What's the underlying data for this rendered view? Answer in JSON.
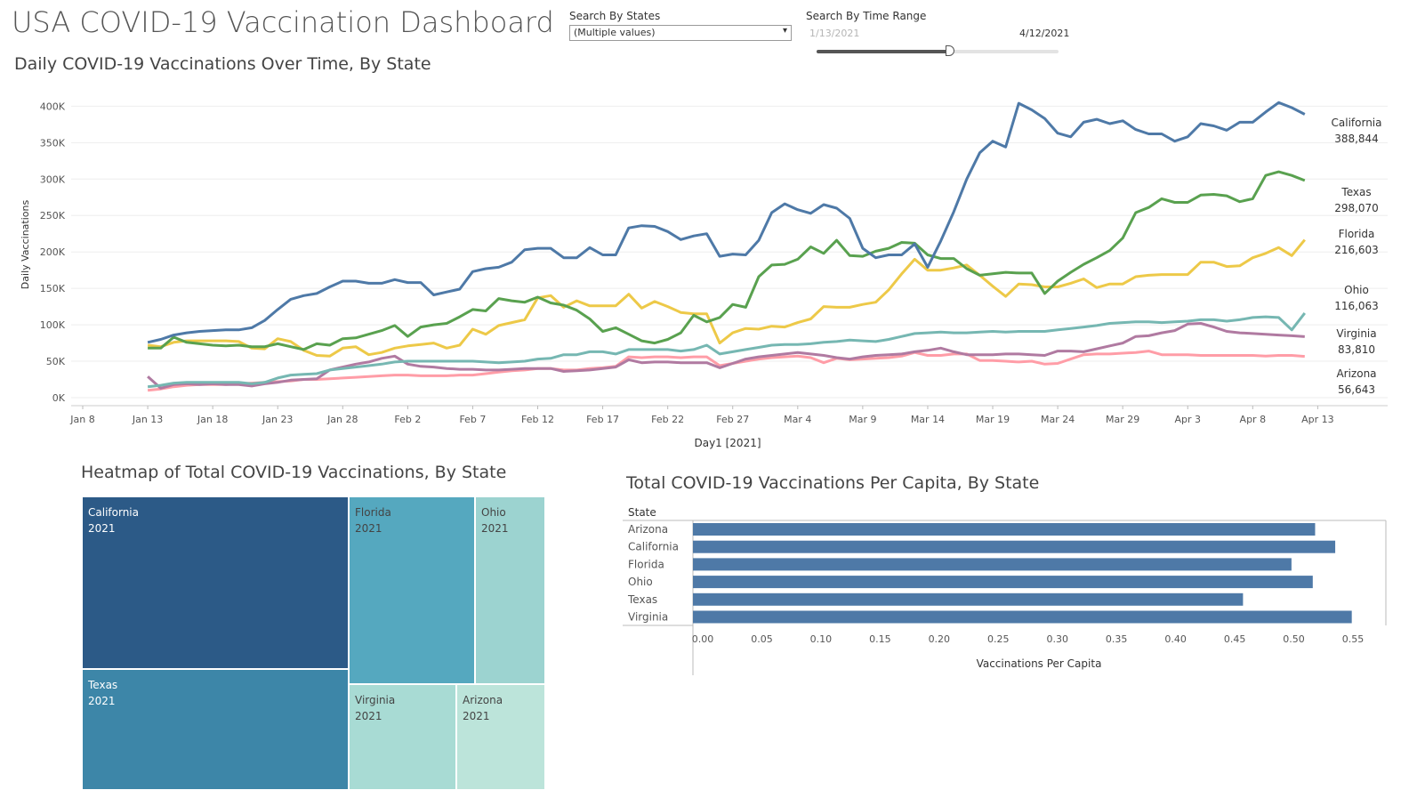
{
  "dashboard": {
    "title": "USA COVID-19 Vaccination Dashboard",
    "filters": {
      "states_label": "Search By States",
      "states_value": "(Multiple values)",
      "time_label": "Search By Time Range",
      "range_start": "1/13/2021",
      "range_end": "4/12/2021",
      "range_position": 0.56
    },
    "colors": {
      "California": "#4e79a7",
      "Texas": "#59a14f",
      "Florida": "#edc948",
      "Ohio": "#76b7b2",
      "Virginia": "#b07aa1",
      "Arizona": "#ff9da7",
      "bar": "#4e79a7"
    }
  },
  "line_chart": {
    "title": "Daily COVID-19 Vaccinations Over Time, By State",
    "end_labels": [
      {
        "state": "California",
        "value": "388,844"
      },
      {
        "state": "Texas",
        "value": "298,070"
      },
      {
        "state": "Florida",
        "value": "216,603"
      },
      {
        "state": "Ohio",
        "value": "116,063"
      },
      {
        "state": "Virginia",
        "value": "83,810"
      },
      {
        "state": "Arizona",
        "value": "56,643"
      }
    ]
  },
  "treemap": {
    "title": "Heatmap of Total COVID-19 Vaccinations, By State",
    "cells": [
      {
        "state": "California",
        "year": "2021",
        "color": "#2c5a87",
        "text": "#ffffff"
      },
      {
        "state": "Texas",
        "year": "2021",
        "color": "#3d86a8",
        "text": "#ffffff"
      },
      {
        "state": "Florida",
        "year": "2021",
        "color": "#55a8bf",
        "text": "#444444"
      },
      {
        "state": "Ohio",
        "year": "2021",
        "color": "#9cd3d0",
        "text": "#444444"
      },
      {
        "state": "Virginia",
        "year": "2021",
        "color": "#a8dbd4",
        "text": "#444444"
      },
      {
        "state": "Arizona",
        "year": "2021",
        "color": "#bce4da",
        "text": "#444444"
      }
    ]
  },
  "bar_chart": {
    "title": "Total COVID-19 Vaccinations Per Capita, By State",
    "row_header": "State"
  },
  "chart_data": [
    {
      "type": "line",
      "title": "Daily COVID-19 Vaccinations Over Time, By State",
      "xlabel": "Day1 [2021]",
      "ylabel": "Daily Vaccinations",
      "x_start": "2021-01-13",
      "x_end": "2021-04-12",
      "xlim": [
        "2021-01-08",
        "2021-04-14"
      ],
      "ylim": [
        0,
        420000
      ],
      "x_ticks": [
        "Jan 8",
        "Jan 13",
        "Jan 18",
        "Jan 23",
        "Jan 28",
        "Feb 2",
        "Feb 7",
        "Feb 12",
        "Feb 17",
        "Feb 22",
        "Feb 27",
        "Mar 4",
        "Mar 9",
        "Mar 14",
        "Mar 19",
        "Mar 24",
        "Mar 29",
        "Apr 3",
        "Apr 8",
        "Apr 13"
      ],
      "y_ticks": [
        "0K",
        "50K",
        "100K",
        "150K",
        "200K",
        "250K",
        "300K",
        "350K",
        "400K"
      ],
      "y_tick_values": [
        0,
        50000,
        100000,
        150000,
        200000,
        250000,
        300000,
        350000,
        400000
      ],
      "grid": true,
      "series": [
        {
          "name": "California",
          "values": [
            76000,
            80000,
            86000,
            89000,
            91000,
            92000,
            93000,
            93000,
            96000,
            106000,
            121000,
            135000,
            140000,
            143000,
            152000,
            160000,
            160000,
            157000,
            157000,
            162000,
            158000,
            158000,
            141000,
            145000,
            149000,
            173000,
            177000,
            179000,
            186000,
            203000,
            205000,
            205000,
            192000,
            192000,
            206000,
            196000,
            196000,
            233000,
            236000,
            235000,
            228000,
            217000,
            222000,
            225000,
            194000,
            197000,
            196000,
            216000,
            254000,
            266000,
            258000,
            253000,
            265000,
            260000,
            246000,
            205000,
            192000,
            196000,
            196000,
            211000,
            179000,
            215000,
            255000,
            300000,
            336000,
            352000,
            344000,
            404000,
            395000,
            383000,
            363000,
            358000,
            378000,
            382000,
            376000,
            380000,
            368000,
            362000,
            362000,
            352000,
            358000,
            376000,
            373000,
            367000,
            378000,
            378000,
            392000,
            405000,
            398000,
            388844
          ]
        },
        {
          "name": "Texas",
          "values": [
            68000,
            68000,
            83000,
            76000,
            74000,
            72000,
            71000,
            72000,
            70000,
            70000,
            74000,
            70000,
            66000,
            74000,
            72000,
            81000,
            82000,
            87000,
            92000,
            99000,
            84000,
            97000,
            100000,
            102000,
            111000,
            121000,
            119000,
            136000,
            133000,
            131000,
            138000,
            130000,
            127000,
            120000,
            108000,
            91000,
            96000,
            87000,
            78000,
            75000,
            80000,
            89000,
            113000,
            104000,
            110000,
            128000,
            124000,
            166000,
            182000,
            183000,
            190000,
            207000,
            198000,
            216000,
            195000,
            194000,
            201000,
            205000,
            213000,
            212000,
            196000,
            191000,
            191000,
            177000,
            168000,
            170000,
            172000,
            171000,
            171000,
            143000,
            160000,
            172000,
            183000,
            192000,
            202000,
            219000,
            254000,
            261000,
            273000,
            268000,
            268000,
            278000,
            279000,
            277000,
            269000,
            273000,
            305000,
            310000,
            305000,
            298070
          ]
        },
        {
          "name": "Florida",
          "values": [
            72000,
            70000,
            76000,
            78000,
            78000,
            78000,
            78000,
            77000,
            68000,
            67000,
            81000,
            77000,
            65000,
            58000,
            57000,
            68000,
            70000,
            59000,
            62000,
            68000,
            71000,
            73000,
            75000,
            68000,
            72000,
            94000,
            87000,
            99000,
            103000,
            107000,
            137000,
            140000,
            124000,
            133000,
            126000,
            126000,
            126000,
            142000,
            123000,
            132000,
            125000,
            117000,
            115000,
            115000,
            75000,
            89000,
            95000,
            94000,
            98000,
            97000,
            103000,
            108000,
            125000,
            124000,
            124000,
            128000,
            131000,
            148000,
            170000,
            190000,
            175000,
            175000,
            178000,
            182000,
            168000,
            153000,
            139000,
            156000,
            155000,
            152000,
            152000,
            157000,
            163000,
            151000,
            156000,
            156000,
            166000,
            168000,
            169000,
            169000,
            169000,
            186000,
            186000,
            180000,
            181000,
            192000,
            198000,
            206000,
            195000,
            216603
          ]
        },
        {
          "name": "Ohio",
          "values": [
            15000,
            17000,
            20000,
            21000,
            21000,
            21000,
            21000,
            21000,
            19000,
            21000,
            27000,
            31000,
            32000,
            33000,
            38000,
            40000,
            42000,
            44000,
            46000,
            49000,
            50000,
            50000,
            50000,
            50000,
            50000,
            50000,
            49000,
            48000,
            49000,
            50000,
            53000,
            54000,
            59000,
            59000,
            63000,
            63000,
            60000,
            66000,
            66000,
            66000,
            66000,
            64000,
            66000,
            72000,
            60000,
            63000,
            66000,
            69000,
            72000,
            73000,
            73000,
            74000,
            76000,
            77000,
            79000,
            78000,
            77000,
            80000,
            84000,
            88000,
            89000,
            90000,
            89000,
            89000,
            90000,
            91000,
            90000,
            91000,
            91000,
            91000,
            93000,
            95000,
            97000,
            99000,
            102000,
            103000,
            104000,
            104000,
            103000,
            104000,
            105000,
            107000,
            107000,
            105000,
            107000,
            110000,
            111000,
            110000,
            93000,
            116063
          ]
        },
        {
          "name": "Virginia",
          "values": [
            29000,
            13000,
            18000,
            19000,
            18000,
            19000,
            18000,
            18000,
            16000,
            19000,
            21000,
            24000,
            25000,
            26000,
            38000,
            42000,
            46000,
            49000,
            54000,
            57000,
            46000,
            43000,
            42000,
            40000,
            39000,
            39000,
            38000,
            38000,
            39000,
            40000,
            40000,
            40000,
            36000,
            37000,
            38000,
            40000,
            42000,
            52000,
            48000,
            49000,
            49000,
            48000,
            48000,
            48000,
            41000,
            47000,
            53000,
            56000,
            58000,
            60000,
            62000,
            60000,
            58000,
            55000,
            53000,
            56000,
            58000,
            59000,
            60000,
            63000,
            65000,
            68000,
            63000,
            59000,
            59000,
            59000,
            60000,
            60000,
            59000,
            58000,
            64000,
            64000,
            63000,
            67000,
            71000,
            75000,
            84000,
            85000,
            89000,
            92000,
            101000,
            102000,
            97000,
            91000,
            89000,
            88000,
            87000,
            86000,
            85000,
            83810
          ]
        },
        {
          "name": "Arizona",
          "values": [
            10000,
            12000,
            15000,
            17000,
            18000,
            18000,
            18000,
            19000,
            20000,
            21000,
            22000,
            23000,
            25000,
            25000,
            26000,
            27000,
            28000,
            29000,
            30000,
            31000,
            31000,
            30000,
            30000,
            30000,
            31000,
            31000,
            33000,
            35000,
            37000,
            38000,
            40000,
            40000,
            38000,
            38000,
            40000,
            41000,
            43000,
            56000,
            55000,
            56000,
            56000,
            55000,
            56000,
            56000,
            44000,
            47000,
            50000,
            53000,
            55000,
            56000,
            57000,
            55000,
            48000,
            54000,
            52000,
            53000,
            54000,
            55000,
            57000,
            62000,
            58000,
            58000,
            60000,
            60000,
            51000,
            51000,
            50000,
            49000,
            50000,
            46000,
            47000,
            53000,
            59000,
            60000,
            60000,
            61000,
            62000,
            64000,
            59000,
            59000,
            59000,
            58000,
            58000,
            58000,
            58000,
            58000,
            57000,
            58000,
            58000,
            56643
          ]
        }
      ]
    },
    {
      "type": "treemap",
      "title": "Heatmap of Total COVID-19 Vaccinations, By State",
      "categories": [
        "California",
        "Texas",
        "Florida",
        "Ohio",
        "Virginia",
        "Arizona"
      ],
      "values": [
        1.0,
        0.78,
        0.41,
        0.22,
        0.21,
        0.2
      ]
    },
    {
      "type": "bar",
      "orientation": "horizontal",
      "title": "Total COVID-19 Vaccinations Per Capita, By State",
      "categories": [
        "Arizona",
        "California",
        "Florida",
        "Ohio",
        "Texas",
        "Virginia"
      ],
      "values": [
        0.518,
        0.535,
        0.498,
        0.516,
        0.457,
        0.549
      ],
      "xlabel": "Vaccinations Per Capita",
      "ylabel": "State",
      "xlim": [
        0,
        0.58
      ],
      "x_ticks": [
        "0.00",
        "0.05",
        "0.10",
        "0.15",
        "0.20",
        "0.25",
        "0.30",
        "0.35",
        "0.40",
        "0.45",
        "0.50",
        "0.55"
      ],
      "x_tick_values": [
        0,
        0.05,
        0.1,
        0.15,
        0.2,
        0.25,
        0.3,
        0.35,
        0.4,
        0.45,
        0.5,
        0.55
      ],
      "grid": false
    }
  ]
}
